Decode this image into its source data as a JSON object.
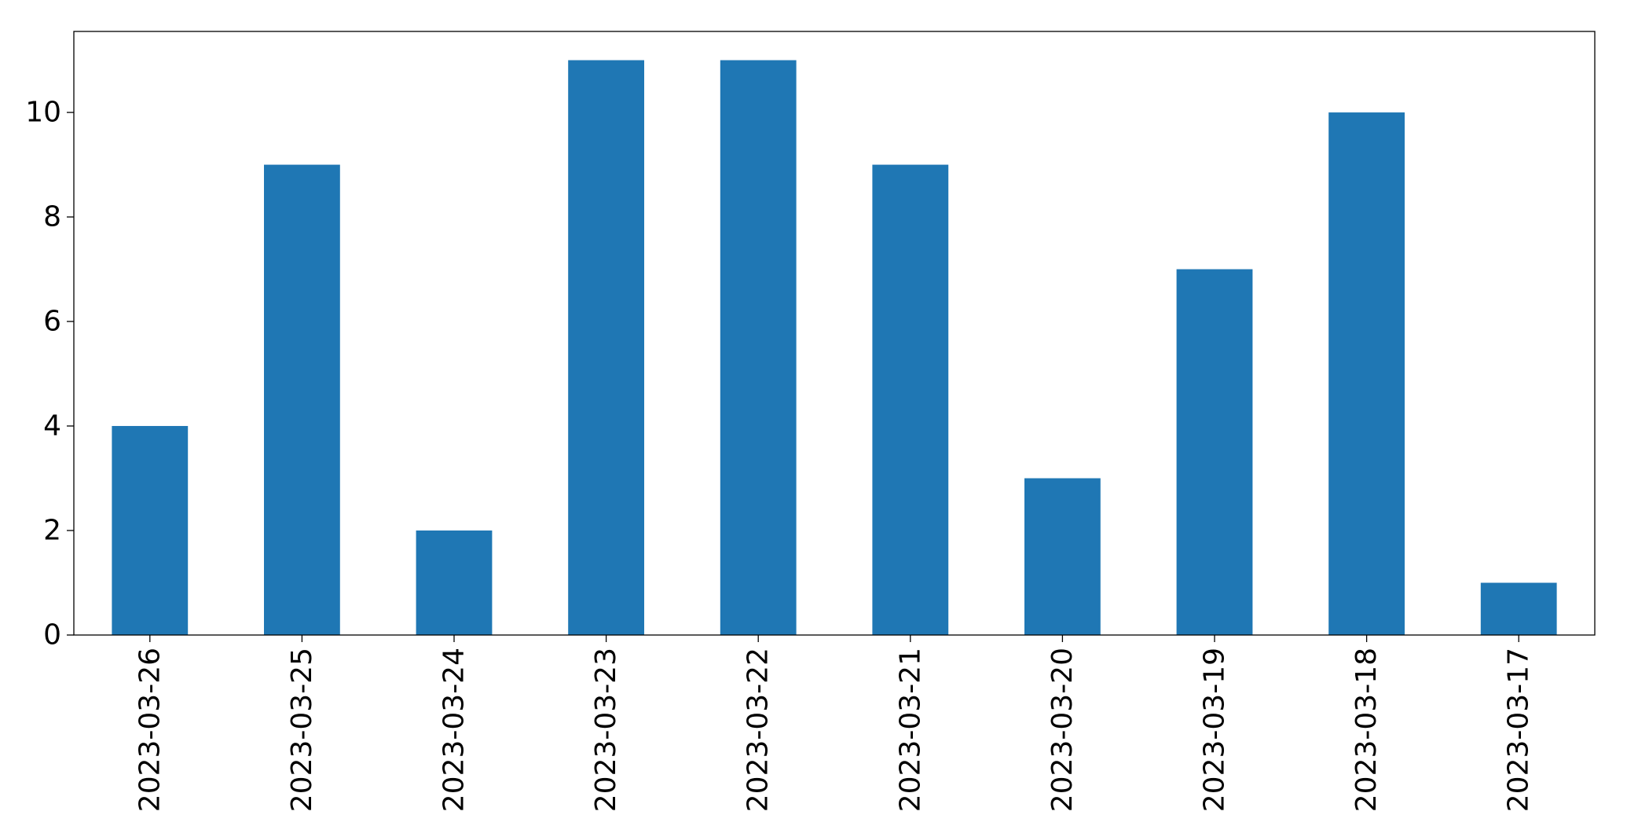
{
  "chart_data": {
    "type": "bar",
    "categories": [
      "2023-03-26",
      "2023-03-25",
      "2023-03-24",
      "2023-03-23",
      "2023-03-22",
      "2023-03-21",
      "2023-03-20",
      "2023-03-19",
      "2023-03-18",
      "2023-03-17"
    ],
    "values": [
      4,
      9,
      2,
      11,
      11,
      9,
      3,
      7,
      10,
      1
    ],
    "color": "#1f77b4",
    "ylim": [
      0,
      11.55
    ],
    "yticks": [
      0,
      2,
      4,
      6,
      8,
      10
    ],
    "grid": false
  }
}
